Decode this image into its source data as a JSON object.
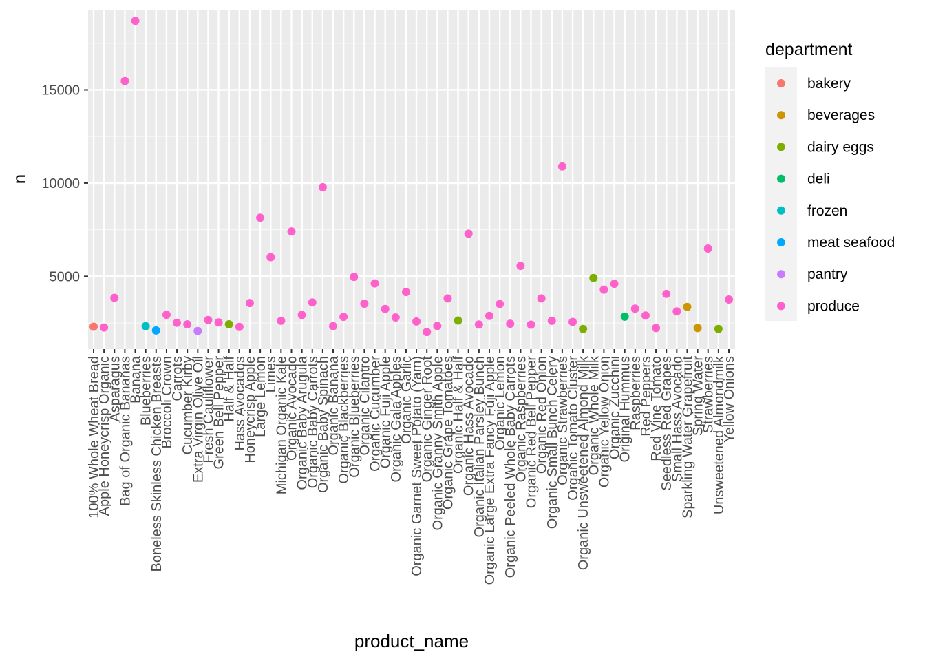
{
  "chart_data": {
    "type": "scatter",
    "title": "",
    "xlabel": "product_name",
    "ylabel": "n",
    "ylim": [
      1100,
      19300
    ],
    "yticks": [
      5000,
      10000,
      15000
    ],
    "grid": true,
    "legend_position": "right",
    "legend_title": "department",
    "colors": {
      "bakery": "#F8766D",
      "beverages": "#CD9600",
      "dairy eggs": "#7CAE00",
      "deli": "#00BE67",
      "frozen": "#00BFC4",
      "meat seafood": "#00A9FF",
      "pantry": "#C77CFF",
      "produce": "#FF61CC"
    },
    "departments": [
      "bakery",
      "beverages",
      "dairy eggs",
      "deli",
      "frozen",
      "meat seafood",
      "pantry",
      "produce"
    ],
    "points": [
      {
        "x": "100% Whole Wheat Bread",
        "y": 2300,
        "department": "bakery"
      },
      {
        "x": "Apple Honeycrisp Organic",
        "y": 2260,
        "department": "produce"
      },
      {
        "x": "Asparagus",
        "y": 3850,
        "department": "produce"
      },
      {
        "x": "Bag of Organic Bananas",
        "y": 15470,
        "department": "produce"
      },
      {
        "x": "Banana",
        "y": 18700,
        "department": "produce"
      },
      {
        "x": "Blueberries",
        "y": 2330,
        "department": "frozen"
      },
      {
        "x": "Boneless Skinless Chicken Breasts",
        "y": 2100,
        "department": "meat seafood"
      },
      {
        "x": "Broccoli Crown",
        "y": 2940,
        "department": "produce"
      },
      {
        "x": "Carrots",
        "y": 2510,
        "department": "produce"
      },
      {
        "x": "Cucumber Kirby",
        "y": 2430,
        "department": "produce"
      },
      {
        "x": "Extra Virgin Olive Oil",
        "y": 2070,
        "department": "pantry"
      },
      {
        "x": "Fresh Cauliflower",
        "y": 2660,
        "department": "produce"
      },
      {
        "x": "Green Bell Pepper",
        "y": 2530,
        "department": "produce"
      },
      {
        "x": "Half & Half",
        "y": 2430,
        "department": "dairy eggs"
      },
      {
        "x": "Hass Avocados",
        "y": 2290,
        "department": "produce"
      },
      {
        "x": "Honeycrisp Apple",
        "y": 3570,
        "department": "produce"
      },
      {
        "x": "Large Lemon",
        "y": 8140,
        "department": "produce"
      },
      {
        "x": "Limes",
        "y": 6030,
        "department": "produce"
      },
      {
        "x": "Michigan Organic Kale",
        "y": 2620,
        "department": "produce"
      },
      {
        "x": "Organic Avocado",
        "y": 7410,
        "department": "produce"
      },
      {
        "x": "Organic Baby Arugula",
        "y": 2930,
        "department": "produce"
      },
      {
        "x": "Organic Baby Carrots",
        "y": 3600,
        "department": "produce"
      },
      {
        "x": "Organic Baby Spinach",
        "y": 9780,
        "department": "produce"
      },
      {
        "x": "Organic Banana",
        "y": 2330,
        "department": "produce"
      },
      {
        "x": "Organic Blackberries",
        "y": 2830,
        "department": "produce"
      },
      {
        "x": "Organic Blueberries",
        "y": 4970,
        "department": "produce"
      },
      {
        "x": "Organic Cilantro",
        "y": 3530,
        "department": "produce"
      },
      {
        "x": "Organic Cucumber",
        "y": 4620,
        "department": "produce"
      },
      {
        "x": "Organic Fuji Apple",
        "y": 3250,
        "department": "produce"
      },
      {
        "x": "Organic Gala Apples",
        "y": 2800,
        "department": "produce"
      },
      {
        "x": "Organic Garlic",
        "y": 4160,
        "department": "produce"
      },
      {
        "x": "Organic Garnet Sweet Potato (Yam)",
        "y": 2580,
        "department": "produce"
      },
      {
        "x": "Organic Ginger Root",
        "y": 2020,
        "department": "produce"
      },
      {
        "x": "Organic Granny Smith Apple",
        "y": 2340,
        "department": "produce"
      },
      {
        "x": "Organic Grape Tomatoes",
        "y": 3820,
        "department": "produce"
      },
      {
        "x": "Organic Half & Half",
        "y": 2630,
        "department": "dairy eggs"
      },
      {
        "x": "Organic Hass Avocado",
        "y": 7290,
        "department": "produce"
      },
      {
        "x": "Organic Italian Parsley Bunch",
        "y": 2420,
        "department": "produce"
      },
      {
        "x": "Organic Large Extra Fancy Fuji Apple",
        "y": 2880,
        "department": "produce"
      },
      {
        "x": "Organic Lemon",
        "y": 3520,
        "department": "produce"
      },
      {
        "x": "Organic Peeled Whole Baby Carrots",
        "y": 2460,
        "department": "produce"
      },
      {
        "x": "Organic Raspberries",
        "y": 5560,
        "department": "produce"
      },
      {
        "x": "Organic Red Bell Pepper",
        "y": 2410,
        "department": "produce"
      },
      {
        "x": "Organic Red Onion",
        "y": 3820,
        "department": "produce"
      },
      {
        "x": "Organic Small Bunch Celery",
        "y": 2620,
        "department": "produce"
      },
      {
        "x": "Organic Strawberries",
        "y": 10890,
        "department": "produce"
      },
      {
        "x": "Organic Tomato Cluster",
        "y": 2560,
        "department": "produce"
      },
      {
        "x": "Organic Unsweetened Almond Milk",
        "y": 2180,
        "department": "dairy eggs"
      },
      {
        "x": "Organic Whole Milk",
        "y": 4910,
        "department": "dairy eggs"
      },
      {
        "x": "Organic Yellow Onion",
        "y": 4290,
        "department": "produce"
      },
      {
        "x": "Organic Zucchini",
        "y": 4600,
        "department": "produce"
      },
      {
        "x": "Original Hummus",
        "y": 2840,
        "department": "deli"
      },
      {
        "x": "Raspberries",
        "y": 3270,
        "department": "produce"
      },
      {
        "x": "Red Peppers",
        "y": 2900,
        "department": "produce"
      },
      {
        "x": "Red Vine Tomato",
        "y": 2230,
        "department": "produce"
      },
      {
        "x": "Seedless Red Grapes",
        "y": 4060,
        "department": "produce"
      },
      {
        "x": "Small Hass Avocado",
        "y": 3120,
        "department": "produce"
      },
      {
        "x": "Sparkling Water Grapefruit",
        "y": 3360,
        "department": "beverages"
      },
      {
        "x": "Spring Water",
        "y": 2230,
        "department": "beverages"
      },
      {
        "x": "Strawberries",
        "y": 6490,
        "department": "produce"
      },
      {
        "x": "Unsweetened Almondmilk",
        "y": 2180,
        "department": "dairy eggs"
      },
      {
        "x": "Yellow Onions",
        "y": 3760,
        "department": "produce"
      }
    ]
  }
}
